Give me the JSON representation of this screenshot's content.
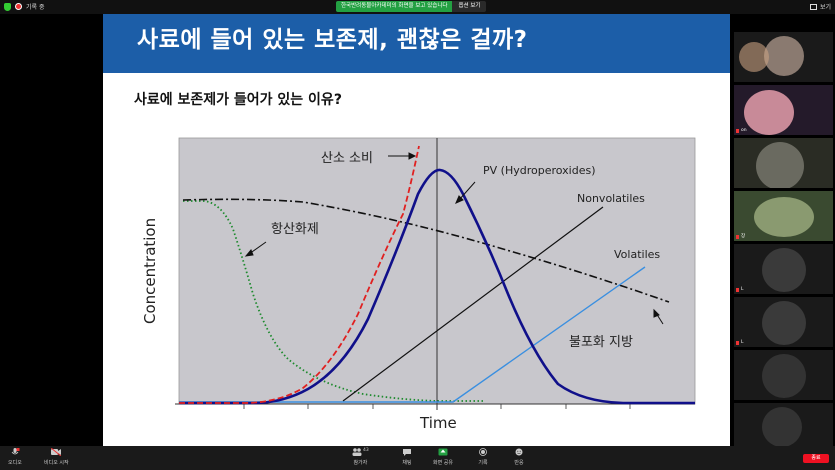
{
  "top_bar": {
    "left_label": "기록 중",
    "share_notice": "한국반려동물아카데미의 화면을 보고 있습니다",
    "view_options": "옵션 보기",
    "view_label": "보기"
  },
  "slide": {
    "title": "사료에 들어 있는 보존제, 괜찮은 걸까?",
    "subtitle": "사료에 보존제가 들어가 있는 이유?"
  },
  "chart_data": {
    "type": "line",
    "xlabel": "Time",
    "ylabel": "Concentration",
    "grid": false,
    "series": [
      {
        "name": "산소 소비",
        "color": "#e02020",
        "style": "dashed"
      },
      {
        "name": "PV (Hydroperoxides)",
        "color": "#10108a",
        "style": "solid"
      },
      {
        "name": "Nonvolatiles",
        "color": "#000000",
        "style": "solid"
      },
      {
        "name": "Volatiles",
        "color": "#3a8fe0",
        "style": "solid"
      },
      {
        "name": "항산화제",
        "color": "#1e8a2e",
        "style": "dotted"
      },
      {
        "name": "불포화 지방",
        "color": "#000000",
        "style": "dash-dot"
      }
    ]
  },
  "gallery": {
    "participants": [
      "on",
      "장",
      "L",
      "L"
    ]
  },
  "bottom_bar": {
    "audio": "오디오",
    "video": "비디오 시작",
    "participants": "참가자",
    "participant_count": "43",
    "chat": "채팅",
    "share": "화면 공유",
    "record": "기록",
    "reactions": "반응",
    "end": "종료"
  },
  "colors": {
    "header_blue": "#1c5ea8",
    "chart_bg": "#c8c7cc",
    "share_green": "#23a042",
    "end_red": "#e11122"
  }
}
